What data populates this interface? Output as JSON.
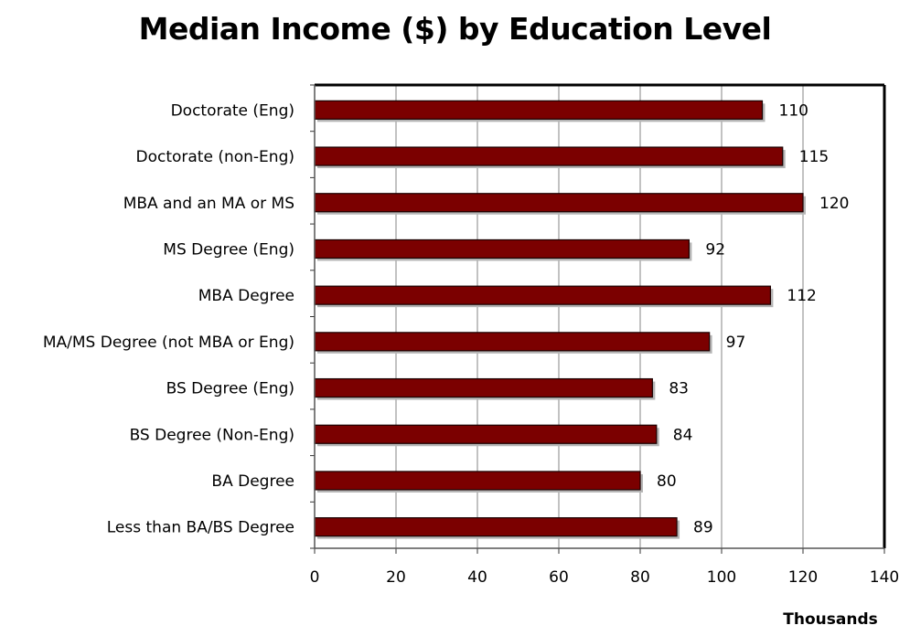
{
  "chart_data": {
    "type": "bar",
    "orientation": "horizontal",
    "title": "Median Income ($) by Education Level",
    "xlabel": "Thousands",
    "ylabel": "",
    "xlim": [
      0,
      140
    ],
    "x_ticks": [
      0,
      20,
      40,
      60,
      80,
      100,
      120,
      140
    ],
    "grid": "vertical",
    "categories": [
      "Doctorate (Eng)",
      "Doctorate (non-Eng)",
      "MBA and an MA or MS",
      "MS Degree (Eng)",
      "MBA Degree",
      "MA/MS Degree (not MBA or Eng)",
      "BS Degree (Eng)",
      "BS Degree (Non-Eng)",
      "BA Degree",
      "Less than BA/BS Degree"
    ],
    "values": [
      110,
      115,
      120,
      92,
      112,
      97,
      83,
      84,
      80,
      89
    ],
    "bar_color": "#7b0000"
  }
}
